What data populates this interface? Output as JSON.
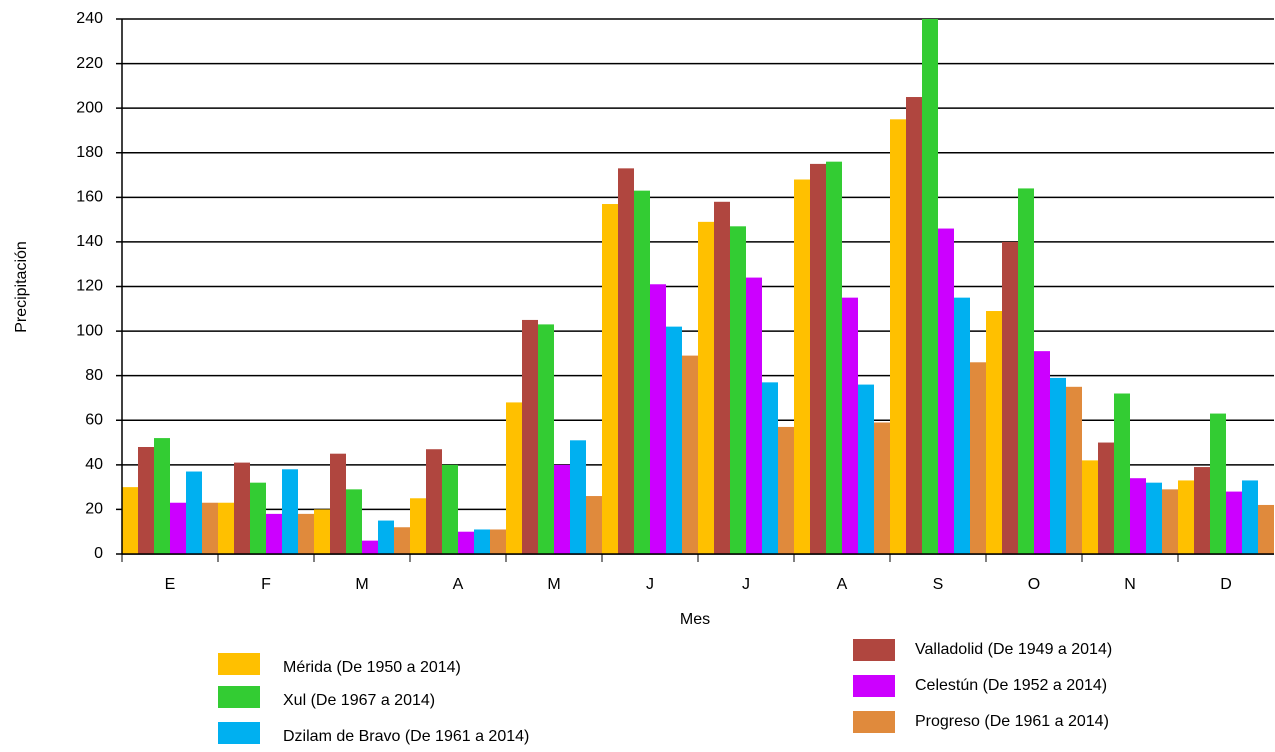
{
  "chart_data": {
    "type": "bar",
    "x_label": "Mes",
    "y_label": "Precipitación",
    "categories": [
      "E",
      "F",
      "M",
      "A",
      "M",
      "J",
      "J",
      "A",
      "S",
      "O",
      "N",
      "D"
    ],
    "series": [
      {
        "name": "Mérida (De 1950 a 2014)",
        "color": "#ffc000",
        "values": [
          30,
          23,
          20,
          25,
          68,
          157,
          149,
          168,
          195,
          109,
          42,
          33
        ]
      },
      {
        "name": "Valladolid (De 1949 a 2014)",
        "color": "#b0463f",
        "values": [
          48,
          41,
          45,
          47,
          105,
          173,
          158,
          175,
          205,
          140,
          50,
          39
        ]
      },
      {
        "name": "Xul (De 1967 a 2014)",
        "color": "#33cc33",
        "values": [
          52,
          32,
          29,
          40,
          103,
          163,
          147,
          176,
          240,
          164,
          72,
          63
        ]
      },
      {
        "name": "Celestún (De 1952 a 2014)",
        "color": "#cc00ff",
        "values": [
          23,
          18,
          6,
          10,
          40,
          121,
          124,
          115,
          146,
          91,
          34,
          28
        ]
      },
      {
        "name": "Dzilam de Bravo (De 1961 a 2014)",
        "color": "#00b0f0",
        "values": [
          37,
          38,
          15,
          11,
          51,
          102,
          77,
          76,
          115,
          79,
          32,
          33
        ]
      },
      {
        "name": "Progreso (De 1961 a 2014)",
        "color": "#e08a3c",
        "values": [
          23,
          18,
          12,
          11,
          26,
          89,
          57,
          59,
          86,
          75,
          29,
          22
        ]
      }
    ],
    "ylim": [
      0,
      240
    ],
    "yticks": [
      0,
      20,
      40,
      60,
      80,
      100,
      120,
      140,
      160,
      180,
      200,
      220,
      240
    ],
    "grid": true
  }
}
